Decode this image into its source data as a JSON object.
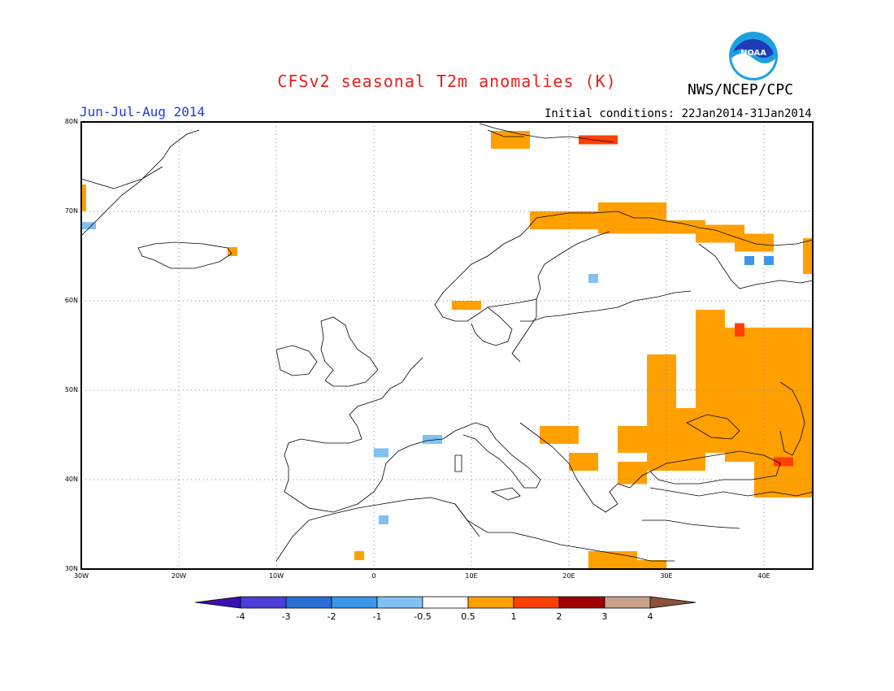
{
  "header": {
    "title": "CFSv2 seasonal T2m anomalies (K)",
    "title_color": "#e8201a",
    "org": "NWS/NCEP/CPC",
    "logo_text": "NOAA",
    "period": "Jun-Jul-Aug 2014",
    "period_color": "#1a3ce8",
    "initial_conditions": "Initial conditions: 22Jan2014-31Jan2014"
  },
  "map": {
    "lon_range": [
      -30,
      45
    ],
    "lat_range": [
      30,
      80
    ],
    "lat_ticks": [
      {
        "value": 80,
        "label": "80N"
      },
      {
        "value": 70,
        "label": "70N"
      },
      {
        "value": 60,
        "label": "60N"
      },
      {
        "value": 50,
        "label": "50N"
      },
      {
        "value": 40,
        "label": "40N"
      },
      {
        "value": 30,
        "label": "30N"
      }
    ],
    "lon_ticks": [
      {
        "value": -30,
        "label": "30W"
      },
      {
        "value": -20,
        "label": "20W"
      },
      {
        "value": -10,
        "label": "10W"
      },
      {
        "value": 0,
        "label": "0"
      },
      {
        "value": 10,
        "label": "10E"
      },
      {
        "value": 20,
        "label": "20E"
      },
      {
        "value": 30,
        "label": "30E"
      },
      {
        "value": 40,
        "label": "40E"
      }
    ],
    "anomaly_cells": [
      {
        "lon": [
          23,
          30
        ],
        "lat": [
          67.5,
          71
        ],
        "class": "0.5-1"
      },
      {
        "lon": [
          16,
          23
        ],
        "lat": [
          68,
          70
        ],
        "class": "0.5-1"
      },
      {
        "lon": [
          30,
          34
        ],
        "lat": [
          67.5,
          69
        ],
        "class": "0.5-1"
      },
      {
        "lon": [
          33,
          38
        ],
        "lat": [
          66.5,
          68.5
        ],
        "class": "0.5-1"
      },
      {
        "lon": [
          37,
          41
        ],
        "lat": [
          65.5,
          67.5
        ],
        "class": "0.5-1"
      },
      {
        "lon": [
          44,
          45
        ],
        "lat": [
          63,
          67
        ],
        "class": "0.5-1"
      },
      {
        "lon": [
          33,
          36
        ],
        "lat": [
          43,
          59
        ],
        "class": "0.5-1"
      },
      {
        "lon": [
          36,
          45
        ],
        "lat": [
          42,
          57
        ],
        "class": "0.5-1"
      },
      {
        "lon": [
          31,
          34
        ],
        "lat": [
          41,
          48
        ],
        "class": "0.5-1"
      },
      {
        "lon": [
          28,
          31
        ],
        "lat": [
          41,
          54
        ],
        "class": "0.5-1"
      },
      {
        "lon": [
          39,
          45
        ],
        "lat": [
          38,
          42
        ],
        "class": "0.5-1"
      },
      {
        "lon": [
          17,
          21
        ],
        "lat": [
          44,
          46
        ],
        "class": "0.5-1"
      },
      {
        "lon": [
          25,
          28
        ],
        "lat": [
          43,
          46
        ],
        "class": "0.5-1"
      },
      {
        "lon": [
          20,
          23
        ],
        "lat": [
          41,
          43
        ],
        "class": "0.5-1"
      },
      {
        "lon": [
          25,
          28
        ],
        "lat": [
          39.5,
          42
        ],
        "class": "0.5-1"
      },
      {
        "lon": [
          8,
          11
        ],
        "lat": [
          59,
          60
        ],
        "class": "0.5-1"
      },
      {
        "lon": [
          22,
          27
        ],
        "lat": [
          30,
          32
        ],
        "class": "0.5-1"
      },
      {
        "lon": [
          27,
          30
        ],
        "lat": [
          30,
          31
        ],
        "class": "0.5-1"
      },
      {
        "lon": [
          12,
          16
        ],
        "lat": [
          77,
          79
        ],
        "class": "0.5-1"
      },
      {
        "lon": [
          -15,
          -14
        ],
        "lat": [
          65,
          66
        ],
        "class": "0.5-1"
      },
      {
        "lon": [
          -30,
          -29.5
        ],
        "lat": [
          70,
          73
        ],
        "class": "0.5-1"
      },
      {
        "lon": [
          -2,
          -1
        ],
        "lat": [
          31,
          32
        ],
        "class": "0.5-1"
      },
      {
        "lon": [
          37,
          38
        ],
        "lat": [
          56,
          57.5
        ],
        "class": "1-2"
      },
      {
        "lon": [
          41,
          43
        ],
        "lat": [
          41.5,
          42.5
        ],
        "class": "1-2"
      },
      {
        "lon": [
          21,
          25
        ],
        "lat": [
          77.5,
          78.5
        ],
        "class": "1-2"
      },
      {
        "lon": [
          -30,
          -28.5
        ],
        "lat": [
          68,
          68.8
        ],
        "class": "-1--0.5"
      },
      {
        "lon": [
          0,
          1.5
        ],
        "lat": [
          42.5,
          43.5
        ],
        "class": "-1--0.5"
      },
      {
        "lon": [
          5,
          7
        ],
        "lat": [
          44,
          45
        ],
        "class": "-1--0.5"
      },
      {
        "lon": [
          0.5,
          1.5
        ],
        "lat": [
          35,
          36
        ],
        "class": "-1--0.5"
      },
      {
        "lon": [
          22,
          23
        ],
        "lat": [
          62,
          63
        ],
        "class": "-1--0.5"
      },
      {
        "lon": [
          38,
          39
        ],
        "lat": [
          64,
          65
        ],
        "class": "-1.5--1"
      },
      {
        "lon": [
          40,
          41
        ],
        "lat": [
          64,
          65
        ],
        "class": "-1.5--1"
      }
    ]
  },
  "colorbar": {
    "colors": [
      "#3a0fb0",
      "#4b3fd8",
      "#2a6ed8",
      "#3a96e8",
      "#82c0f4",
      "#ffffff",
      "#ffa000",
      "#ff4000",
      "#a00000",
      "#c8a08c",
      "#8a5238"
    ],
    "labels": [
      "-4",
      "-3",
      "-2",
      "-1",
      "-0.5",
      "0.5",
      "1",
      "2",
      "3",
      "4"
    ]
  }
}
